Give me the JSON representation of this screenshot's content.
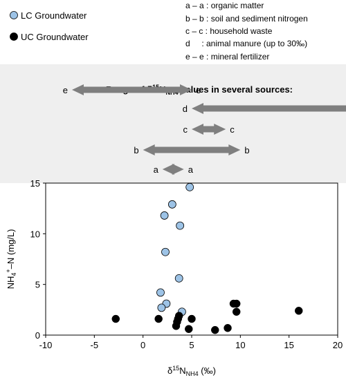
{
  "chart_data": {
    "type": "scatter",
    "xlabel": "δ15NNH4 (‰)",
    "xlabel_parts": [
      "δ",
      "15",
      "N",
      "NH4",
      " (‰)"
    ],
    "ylabel": "NH4+–N (mg/L)",
    "ylabel_parts": [
      "NH",
      "4",
      "+",
      "–N (mg/L)"
    ],
    "xlim": [
      -10,
      20
    ],
    "ylim": [
      0,
      15
    ],
    "xticks": [
      -10,
      -5,
      0,
      5,
      10,
      15,
      20
    ],
    "yticks": [
      0,
      5,
      10,
      15
    ],
    "grid": false,
    "legend_position": "top-left",
    "series": [
      {
        "name": "LC Groundwater",
        "color": "#9dc3e6",
        "points": [
          [
            4.8,
            14.6
          ],
          [
            3.0,
            12.9
          ],
          [
            2.2,
            11.8
          ],
          [
            3.8,
            10.8
          ],
          [
            2.3,
            8.2
          ],
          [
            3.7,
            5.6
          ],
          [
            1.8,
            4.2
          ],
          [
            2.4,
            3.1
          ],
          [
            1.9,
            2.7
          ],
          [
            4.0,
            2.3
          ]
        ]
      },
      {
        "name": "UC Groundwater",
        "color": "#000000",
        "points": [
          [
            -2.8,
            1.6
          ],
          [
            1.6,
            1.6
          ],
          [
            3.6,
            1.6
          ],
          [
            3.7,
            1.9
          ],
          [
            3.5,
            1.3
          ],
          [
            3.4,
            0.9
          ],
          [
            5.0,
            1.6
          ],
          [
            4.7,
            0.6
          ],
          [
            7.4,
            0.5
          ],
          [
            8.7,
            0.7
          ],
          [
            9.3,
            3.1
          ],
          [
            9.6,
            3.1
          ],
          [
            9.6,
            2.3
          ],
          [
            16.0,
            2.4
          ]
        ]
      }
    ],
    "source_key": [
      "a – a : organic matter",
      "b – b : soil and sediment nitrogen",
      "c – c : household waste",
      "d     : animal manure (up to 30‰)",
      "e – e : mineral fertilizer"
    ],
    "source_ranges": {
      "title": "Range of δ15NNH4 values in several sources:",
      "title_parts": [
        "Range of δ",
        "15",
        "N",
        "NH4",
        " values in several sources:"
      ],
      "arrows": [
        {
          "label": "e",
          "min": -7.3,
          "max": 5.0,
          "open_max": false
        },
        {
          "label": "d",
          "min": 5.0,
          "max": 30,
          "open_max": true
        },
        {
          "label": "c",
          "min": 5.0,
          "max": 8.5,
          "open_max": false
        },
        {
          "label": "b",
          "min": 0.0,
          "max": 10.0,
          "open_max": false
        },
        {
          "label": "a",
          "min": 2.0,
          "max": 4.2,
          "open_max": false
        }
      ]
    }
  }
}
